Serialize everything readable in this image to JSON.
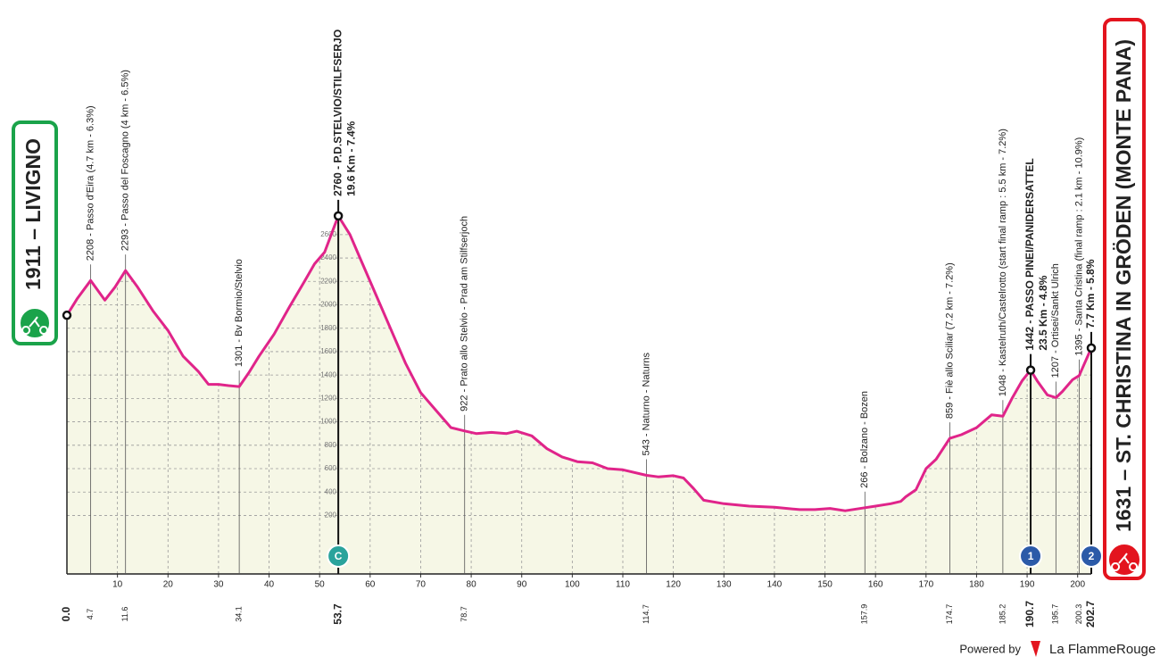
{
  "chart_data": {
    "type": "area",
    "start": "1911 – LIVIGNO",
    "finish": "1631 – ST. CHRISTINA IN GRÖDEN (MONTE PANA)",
    "color": "#e0248a",
    "fill": "#f6f7e6",
    "x": [
      0,
      2,
      4.7,
      7.5,
      9.5,
      11.6,
      14,
      17,
      20,
      23,
      26,
      28,
      30,
      32,
      34.1,
      36,
      38,
      41,
      44,
      47,
      49,
      51,
      53.7,
      56,
      58,
      61,
      64,
      67,
      70,
      73,
      76,
      78.7,
      81,
      84,
      87,
      89,
      92,
      95,
      98,
      101,
      104,
      107,
      110,
      114.7,
      117,
      120,
      122,
      124,
      126,
      130,
      135,
      140,
      145,
      148,
      151,
      154,
      157.9,
      160,
      163,
      165,
      166,
      168,
      170,
      172,
      174.7,
      177,
      180,
      183,
      185.2,
      187,
      189,
      190.7,
      192,
      194,
      195.7,
      197,
      199,
      200.3,
      202.7
    ],
    "values": [
      1911,
      2050,
      2208,
      2040,
      2150,
      2293,
      2150,
      1950,
      1780,
      1560,
      1430,
      1320,
      1320,
      1310,
      1301,
      1420,
      1560,
      1750,
      1980,
      2200,
      2350,
      2450,
      2760,
      2600,
      2400,
      2100,
      1800,
      1500,
      1250,
      1100,
      950,
      922,
      900,
      910,
      900,
      920,
      880,
      770,
      700,
      660,
      650,
      600,
      590,
      543,
      530,
      540,
      520,
      430,
      330,
      300,
      280,
      270,
      250,
      250,
      260,
      240,
      266,
      280,
      300,
      320,
      360,
      420,
      600,
      680,
      859,
      890,
      950,
      1060,
      1048,
      1200,
      1350,
      1442,
      1350,
      1230,
      1207,
      1260,
      1360,
      1395,
      1631
    ],
    "xlim": [
      0,
      202.7
    ],
    "ylim": [
      -300,
      4300
    ],
    "xticks": [
      10,
      20,
      30,
      40,
      50,
      60,
      70,
      80,
      90,
      100,
      110,
      120,
      130,
      140,
      150,
      160,
      170,
      180,
      190,
      200
    ],
    "yticks": [
      200,
      400,
      600,
      800,
      1000,
      1200,
      1400,
      1600,
      1800,
      2000,
      2200,
      2400,
      2600
    ],
    "grid": true,
    "waypoints": [
      {
        "km": {
          "value": 0,
          "label": "0.0"
        },
        "bold": true
      },
      {
        "km": 4.7,
        "label": "2208 - Passo d'Eira (4.7 km - 6.3%)",
        "bold": false
      },
      {
        "km": 11.6,
        "label": "2293 - Passo del Foscagno (4 km - 6.5%)",
        "bold": false
      },
      {
        "km": 34.1,
        "label": "1301 - Bv Bormio/Stelvio",
        "bold": false
      },
      {
        "km": 53.7,
        "label": "2760 - P.D.STELVIO/STILFSERJO",
        "sub": "19.6 Km - 7.4%",
        "bold": true
      },
      {
        "km": 78.7,
        "label": "922 - Prato allo Stelvio - Prad am Stilfserjoch",
        "bold": false
      },
      {
        "km": 114.7,
        "label": "543 - Naturno - Naturns",
        "bold": false
      },
      {
        "km": 157.9,
        "label": "266 - Bolzano - Bozen",
        "bold": false
      },
      {
        "km": 174.7,
        "label": "859 - Fiè allo Sciliar (7.2 km - 7.2%)",
        "bold": false
      },
      {
        "km": 185.2,
        "label": "1048 - Kastelruth/Castelrotto (start final ramp : 5.5 km - 7.2%)",
        "bold": false
      },
      {
        "km": 190.7,
        "label": "1442 - PASSO PINEI/PANIDERSATTEL",
        "sub": "23.5 Km - 4.8%",
        "bold": true
      },
      {
        "km": 195.7,
        "label": "1207 - Ortisei/Sankt Ulrich",
        "bold": false
      },
      {
        "km": 200.3,
        "label": "1395 - Santa Cristina (final ramp : 2.1 km - 10.9%)",
        "bold": false
      },
      {
        "km": 202.7,
        "label": "7.7 Km - 5.8%",
        "bold": true
      }
    ],
    "markers": [
      {
        "km": 53.7,
        "label": "C",
        "color": "#2aa39c"
      },
      {
        "km": 190.7,
        "label": "1",
        "color": "#2b5aa8"
      },
      {
        "km": 202.7,
        "label": "2",
        "color": "#2b5aa8"
      }
    ]
  },
  "footer": {
    "powered": "Powered by",
    "brand": "La FlammeRouge"
  }
}
